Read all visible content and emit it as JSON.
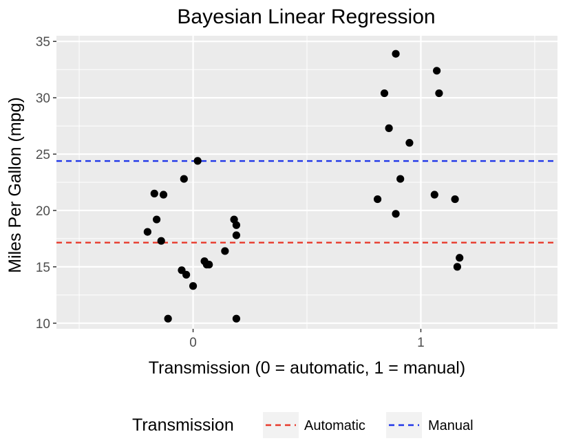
{
  "chart_data": {
    "type": "scatter",
    "title": "Bayesian Linear Regression",
    "xlabel": "Transmission (0 = automatic, 1 = manual)",
    "ylabel": "Miles Per Gallon (mpg)",
    "xlim": [
      -0.6,
      1.6
    ],
    "ylim": [
      9.5,
      35.5
    ],
    "x_ticks": [
      0,
      1
    ],
    "x_tick_labels": [
      "0",
      "1"
    ],
    "y_ticks": [
      10,
      15,
      20,
      25,
      30,
      35
    ],
    "y_tick_labels": [
      "10",
      "15",
      "20",
      "25",
      "30",
      "35"
    ],
    "grid": true,
    "point_color": "#000000",
    "points": [
      {
        "x": -0.2,
        "y": 18.1
      },
      {
        "x": -0.17,
        "y": 21.5
      },
      {
        "x": -0.16,
        "y": 19.2
      },
      {
        "x": -0.14,
        "y": 17.3
      },
      {
        "x": -0.13,
        "y": 21.4
      },
      {
        "x": -0.11,
        "y": 10.4
      },
      {
        "x": -0.05,
        "y": 14.7
      },
      {
        "x": -0.04,
        "y": 22.8
      },
      {
        "x": -0.03,
        "y": 14.3
      },
      {
        "x": 0.0,
        "y": 13.3
      },
      {
        "x": 0.02,
        "y": 24.4
      },
      {
        "x": 0.05,
        "y": 15.5
      },
      {
        "x": 0.06,
        "y": 15.2
      },
      {
        "x": 0.07,
        "y": 15.2
      },
      {
        "x": 0.14,
        "y": 16.4
      },
      {
        "x": 0.18,
        "y": 19.2
      },
      {
        "x": 0.19,
        "y": 17.8
      },
      {
        "x": 0.19,
        "y": 18.7
      },
      {
        "x": 0.19,
        "y": 10.4
      },
      {
        "x": 0.81,
        "y": 21.0
      },
      {
        "x": 0.84,
        "y": 30.4
      },
      {
        "x": 0.86,
        "y": 27.3
      },
      {
        "x": 0.89,
        "y": 33.9
      },
      {
        "x": 0.89,
        "y": 19.7
      },
      {
        "x": 0.91,
        "y": 22.8
      },
      {
        "x": 0.95,
        "y": 26.0
      },
      {
        "x": 1.06,
        "y": 21.4
      },
      {
        "x": 1.07,
        "y": 32.4
      },
      {
        "x": 1.08,
        "y": 30.4
      },
      {
        "x": 1.15,
        "y": 21.0
      },
      {
        "x": 1.16,
        "y": 15.0
      },
      {
        "x": 1.17,
        "y": 15.8
      }
    ],
    "reference_lines": [
      {
        "name": "Automatic",
        "y": 17.15,
        "color": "#e8392b",
        "dash": "dashed"
      },
      {
        "name": "Manual",
        "y": 24.39,
        "color": "#1f36e8",
        "dash": "dashed"
      }
    ],
    "legend": {
      "title": "Transmission",
      "placement": "bottom",
      "entries": [
        "Automatic",
        "Manual"
      ]
    },
    "panel_background": "#ebebeb",
    "grid_color": "#ffffff"
  }
}
